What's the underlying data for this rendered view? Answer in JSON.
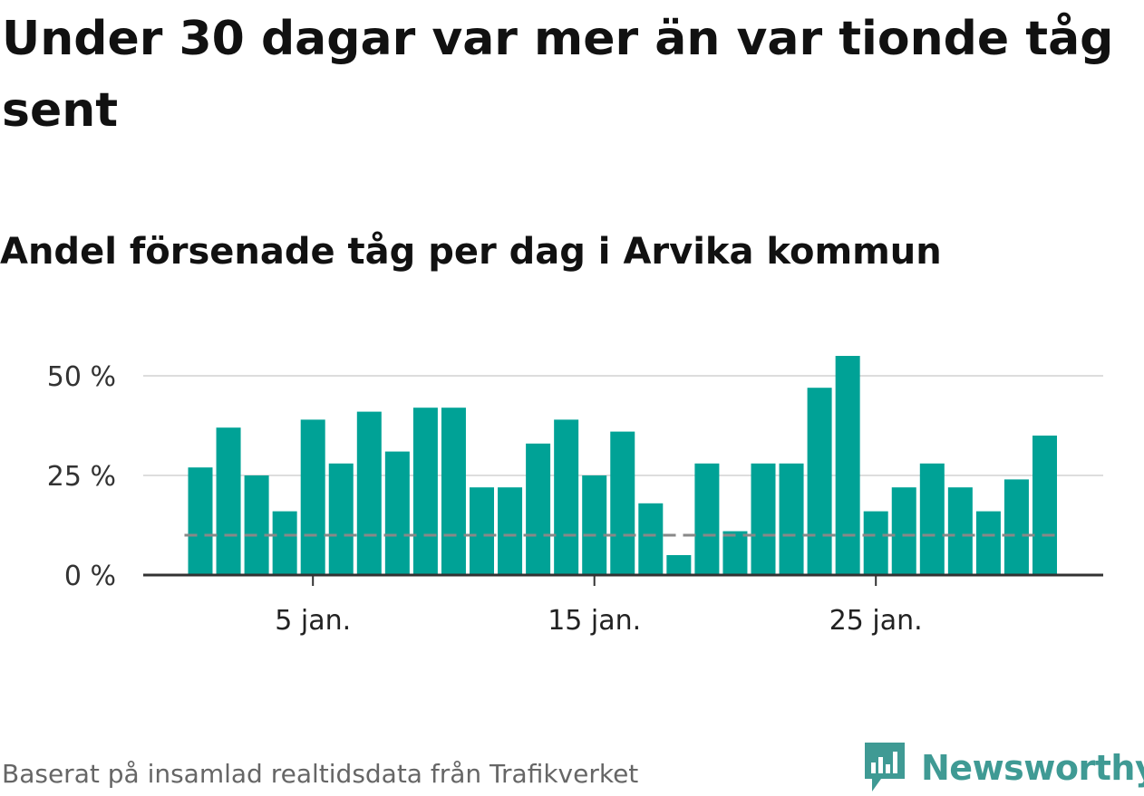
{
  "title": "Under 30 dagar var mer än var tionde tåg sent",
  "subtitle": "Andel försenade tåg per dag i Arvika kommun",
  "footer": "Baserat på insamlad realtidsdata från Trafikverket",
  "logo": {
    "text": "Newsworthy",
    "icon": "bar-chart-speech-bubble-icon",
    "color": "#3f9a94"
  },
  "colors": {
    "bar": "#00a296",
    "reference_line": "#888888",
    "grid": "#dddddd",
    "axis": "#333333"
  },
  "chart_data": {
    "type": "bar",
    "x": [
      1,
      2,
      3,
      4,
      5,
      6,
      7,
      8,
      9,
      10,
      11,
      12,
      13,
      14,
      15,
      16,
      17,
      18,
      19,
      20,
      21,
      22,
      23,
      24,
      25,
      26,
      27,
      28,
      29,
      30,
      31
    ],
    "values": [
      27,
      37,
      25,
      16,
      39,
      28,
      41,
      31,
      42,
      42,
      22,
      22,
      33,
      39,
      25,
      36,
      18,
      5,
      28,
      11,
      28,
      28,
      47,
      55,
      16,
      22,
      28,
      22,
      16,
      24,
      35
    ],
    "xticks": [
      5,
      15,
      25
    ],
    "xtick_labels": [
      "5 jan.",
      "15 jan.",
      "25 jan."
    ],
    "yticks": [
      0,
      25,
      50
    ],
    "ytick_labels": [
      "0 %",
      "25 %",
      "50 %"
    ],
    "ylim": [
      0,
      55
    ],
    "reference_line": {
      "value": 10,
      "style": "dashed"
    },
    "grid": true,
    "title": "Under 30 dagar var mer än var tionde tåg sent",
    "subtitle": "Andel försenade tåg per dag i Arvika kommun",
    "xlabel": "",
    "ylabel": ""
  }
}
